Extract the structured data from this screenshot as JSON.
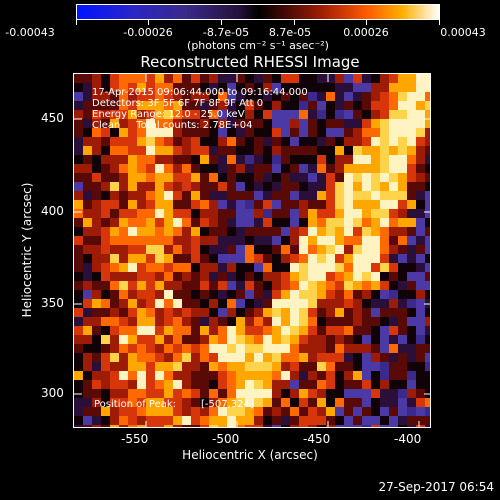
{
  "colorbar": {
    "tick_labels": [
      "-0.00043",
      "-0.00026",
      "-8.7e-05",
      "8.7e-05",
      "0.00026",
      "0.00043"
    ],
    "units": "(photons cm⁻² s⁻¹ asec⁻²)"
  },
  "title": "Reconstructed RHESSI Image",
  "info": {
    "line1": "17-Apr-2015 09:06:44.000 to 09:16:44.000",
    "line2": "Detectors: 3F 5F 6F 7F 8F 9F Att 0",
    "line3": "Energy Range: 12.0 - 25.0 keV",
    "line4": "Clean     Total counts: 2.78E+04"
  },
  "peak": {
    "label": "Position of Peak:",
    "value": "[-507,324]"
  },
  "x_axis": {
    "title": "Heliocentric X (arcsec)",
    "ticks": [
      "-550",
      "-500",
      "-450",
      "-400"
    ]
  },
  "y_axis": {
    "title": "Heliocentric Y (arcsec)",
    "ticks": [
      "450",
      "400",
      "350",
      "300"
    ]
  },
  "timestamp": "27-Sep-2017 06:54"
}
